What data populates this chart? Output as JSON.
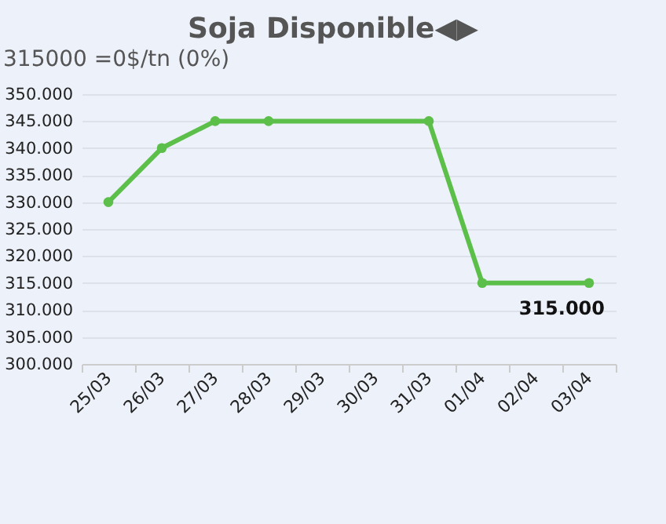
{
  "chart_data": {
    "type": "line",
    "title": "Soja Disponible◀▶",
    "subtitle": "315000 =0$/tn (0%)",
    "categories": [
      "25/03",
      "26/03",
      "27/03",
      "28/03",
      "29/03",
      "30/03",
      "31/03",
      "01/04",
      "02/04",
      "03/04"
    ],
    "series": [
      {
        "color": "#5cbf4a",
        "values": [
          330000,
          340000,
          345000,
          345000,
          null,
          null,
          345000,
          315000,
          null,
          315000
        ],
        "value_labels": [
          null,
          null,
          null,
          null,
          null,
          null,
          null,
          null,
          null,
          "315.000"
        ]
      }
    ],
    "ylim": [
      300000,
      350000
    ],
    "yticks": [
      {
        "value": 300000,
        "label": "300.000"
      },
      {
        "value": 305000,
        "label": "305.000"
      },
      {
        "value": 310000,
        "label": "310.000"
      },
      {
        "value": 315000,
        "label": "315.000"
      },
      {
        "value": 320000,
        "label": "320.000"
      },
      {
        "value": 325000,
        "label": "325.000"
      },
      {
        "value": 330000,
        "label": "330.000"
      },
      {
        "value": 335000,
        "label": "335.000"
      },
      {
        "value": 340000,
        "label": "340.000"
      },
      {
        "value": 345000,
        "label": "345.000"
      },
      {
        "value": 350000,
        "label": "350.000"
      }
    ],
    "grid": "y",
    "marker": "circle"
  }
}
